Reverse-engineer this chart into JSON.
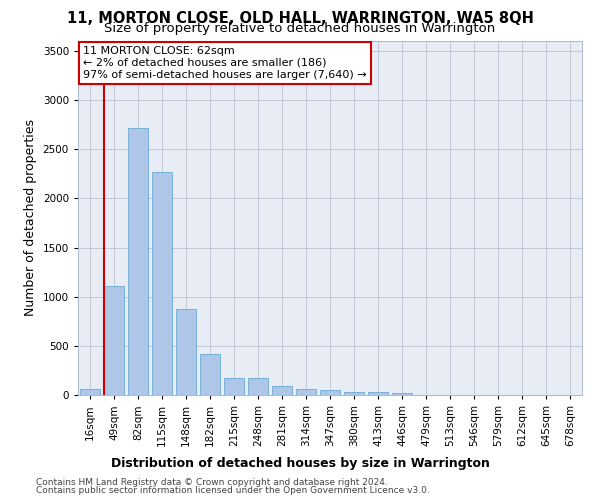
{
  "title": "11, MORTON CLOSE, OLD HALL, WARRINGTON, WA5 8QH",
  "subtitle": "Size of property relative to detached houses in Warrington",
  "xlabel": "Distribution of detached houses by size in Warrington",
  "ylabel": "Number of detached properties",
  "categories": [
    "16sqm",
    "49sqm",
    "82sqm",
    "115sqm",
    "148sqm",
    "182sqm",
    "215sqm",
    "248sqm",
    "281sqm",
    "314sqm",
    "347sqm",
    "380sqm",
    "413sqm",
    "446sqm",
    "479sqm",
    "513sqm",
    "546sqm",
    "579sqm",
    "612sqm",
    "645sqm",
    "678sqm"
  ],
  "values": [
    60,
    1110,
    2720,
    2270,
    870,
    420,
    175,
    170,
    95,
    60,
    50,
    35,
    35,
    25,
    0,
    0,
    0,
    0,
    0,
    0,
    0
  ],
  "bar_color": "#aec6e8",
  "bar_edge_color": "#6aaad4",
  "vline_x_idx": 1,
  "vline_color": "#cc0000",
  "annotation_line1": "11 MORTON CLOSE: 62sqm",
  "annotation_line2": "← 2% of detached houses are smaller (186)",
  "annotation_line3": "97% of semi-detached houses are larger (7,640) →",
  "annotation_box_color": "#ffffff",
  "annotation_box_edge": "#cc0000",
  "ylim": [
    0,
    3600
  ],
  "yticks": [
    0,
    500,
    1000,
    1500,
    2000,
    2500,
    3000,
    3500
  ],
  "plot_background": "#e8edf5",
  "footer1": "Contains HM Land Registry data © Crown copyright and database right 2024.",
  "footer2": "Contains public sector information licensed under the Open Government Licence v3.0.",
  "title_fontsize": 10.5,
  "subtitle_fontsize": 9.5,
  "xlabel_fontsize": 9,
  "ylabel_fontsize": 9,
  "tick_fontsize": 7.5,
  "annotation_fontsize": 8,
  "footer_fontsize": 6.5
}
